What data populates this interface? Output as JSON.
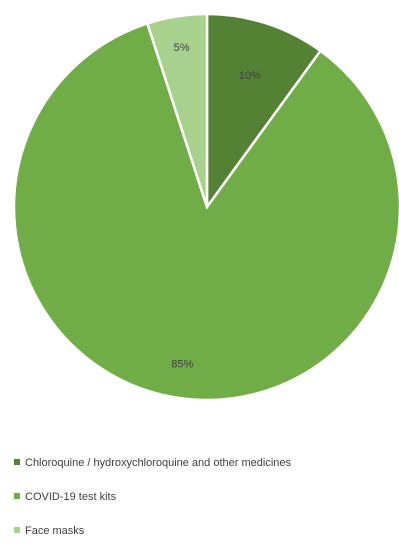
{
  "chart_data": {
    "type": "pie",
    "categories": [
      "Chloroquine / hydroxychloroquine and other medicines",
      "COVID-19 test kits",
      "Face masks"
    ],
    "values": [
      10,
      85,
      5
    ],
    "data_labels": [
      "10%",
      "85%",
      "5%"
    ],
    "colors": [
      "#548235",
      "#70ad47",
      "#a9d18e"
    ],
    "legend_position": "bottom",
    "start_angle": "12 o'clock, clockwise"
  }
}
